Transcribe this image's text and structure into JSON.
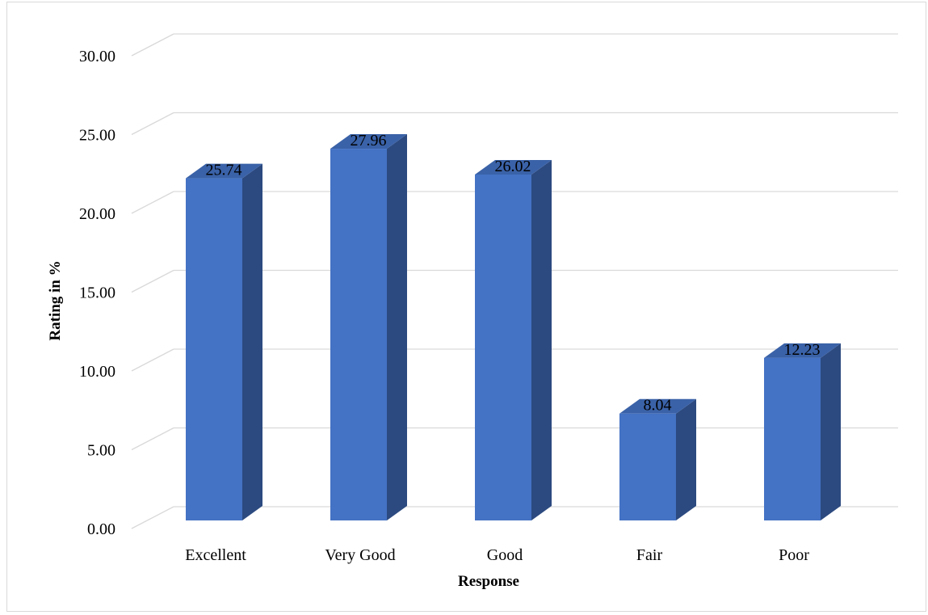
{
  "chart_data": {
    "type": "bar",
    "style": "3d-column",
    "categories": [
      "Excellent",
      "Very Good",
      "Good",
      "Fair",
      "Poor"
    ],
    "values": [
      25.74,
      27.96,
      26.02,
      8.04,
      12.23
    ],
    "data_labels": [
      "25.74",
      "27.96",
      "26.02",
      "8.04",
      "12.23"
    ],
    "title": "",
    "xlabel": "Response",
    "ylabel": "Rating in %",
    "ylim": [
      0,
      30
    ],
    "yticks": [
      "0.00",
      "5.00",
      "10.00",
      "15.00",
      "20.00",
      "25.00",
      "30.00"
    ],
    "grid": true,
    "legend": "none",
    "colors": {
      "bar_front": "#4472c4",
      "bar_side": "#2c4a80",
      "bar_top": "#3a62a8",
      "gridline": "#d9d9d9"
    }
  }
}
